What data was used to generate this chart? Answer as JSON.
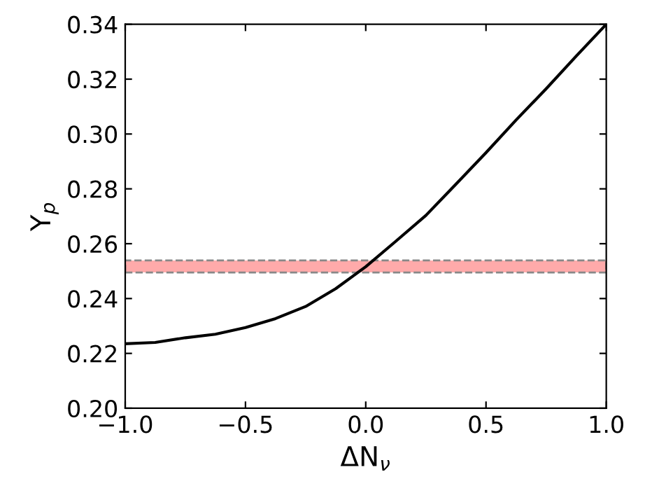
{
  "chart_data": {
    "type": "line",
    "xlabel": "ΔN$_{ν}$",
    "ylabel": "Y$_{p}$",
    "x": [
      -1,
      -0.875,
      -0.75,
      -0.625,
      -0.5,
      -0.375,
      -0.25,
      -0.125,
      0,
      0.125,
      0.25,
      0.375,
      0.5,
      0.625,
      0.75,
      0.875,
      1
    ],
    "series": [
      {
        "color": "#000000",
        "values": [
          0.2235,
          0.224,
          0.2257,
          0.227,
          0.2294,
          0.2327,
          0.2371,
          0.2436,
          0.2516,
          0.2609,
          0.2703,
          0.2817,
          0.2932,
          0.3051,
          0.3165,
          0.3284,
          0.34
        ]
      }
    ],
    "bands": [
      {
        "axis": "y",
        "from": 0.2495,
        "to": 0.2539,
        "color": "#ffaaaa"
      }
    ],
    "xlim": [
      -1,
      1
    ],
    "ylim": [
      0.2,
      0.34
    ],
    "xticks": [
      {
        "value": -1,
        "label": "−1.0"
      },
      {
        "value": -0.5,
        "label": "−0.5"
      },
      {
        "value": 0,
        "label": "0.0"
      },
      {
        "value": 0.5,
        "label": "0.5"
      },
      {
        "value": 1,
        "label": "1.0"
      }
    ],
    "yticks": [
      {
        "value": 0.2,
        "label": "0.20"
      },
      {
        "value": 0.22,
        "label": "0.22"
      },
      {
        "value": 0.24,
        "label": "0.24"
      },
      {
        "value": 0.26,
        "label": "0.26"
      },
      {
        "value": 0.28,
        "label": "0.28"
      },
      {
        "value": 0.3,
        "label": "0.30"
      },
      {
        "value": 0.32,
        "label": "0.32"
      },
      {
        "value": 0.34,
        "label": "0.34"
      }
    ],
    "grid": false,
    "marker": "none",
    "line_style": "solid"
  }
}
